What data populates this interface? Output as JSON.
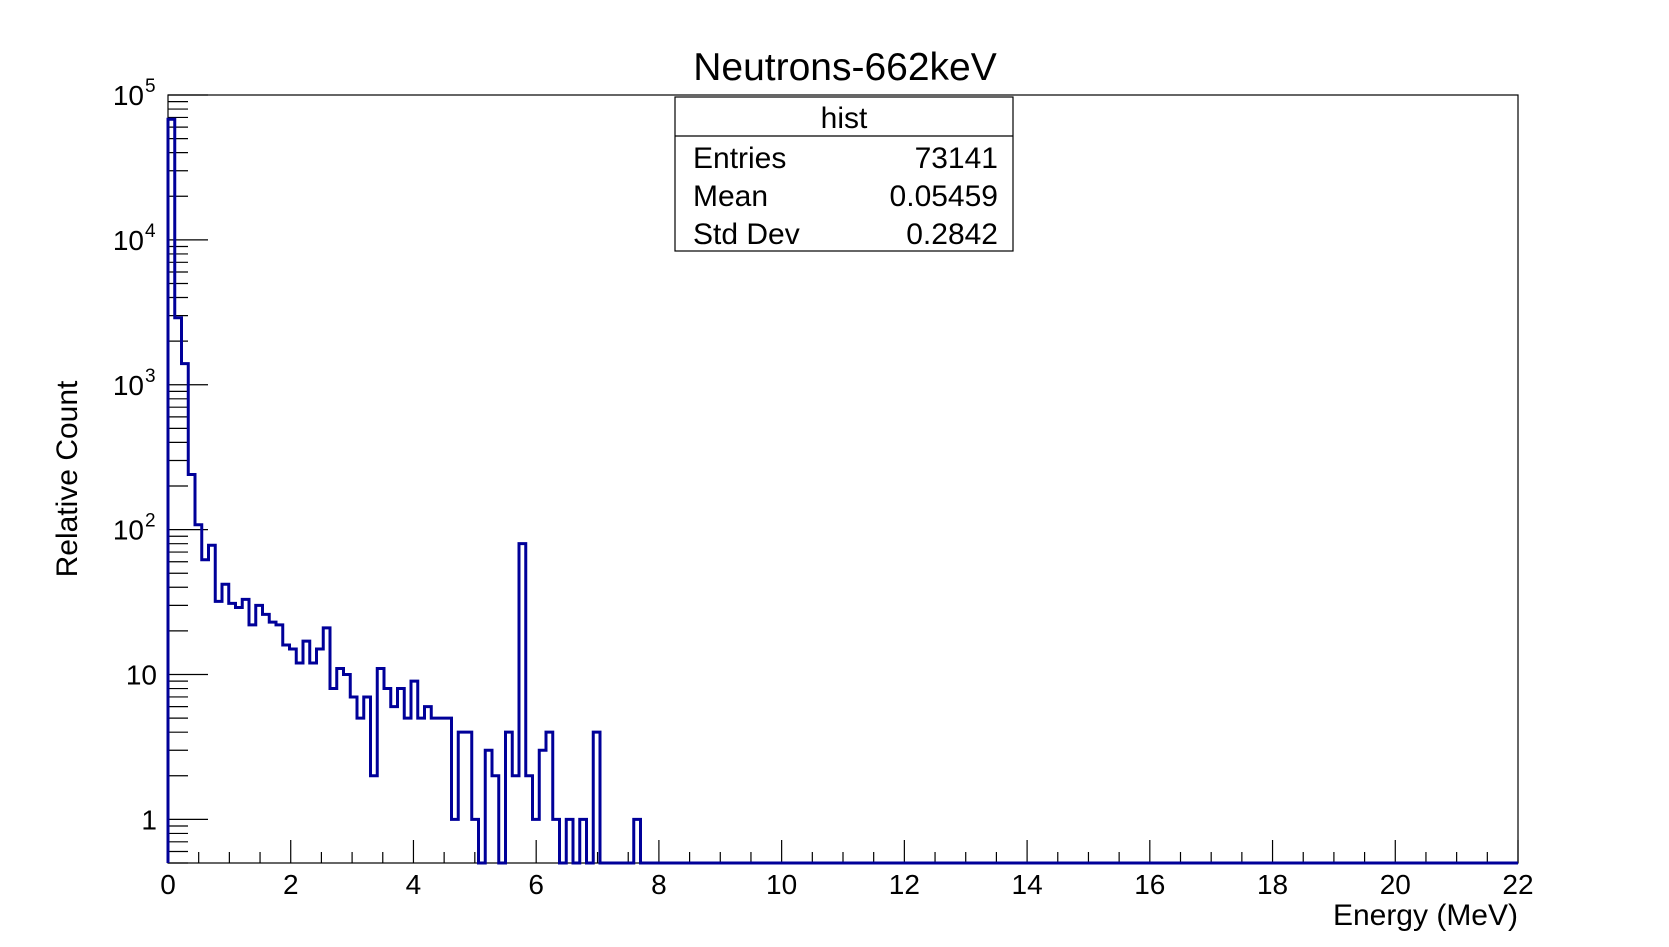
{
  "chart_data": {
    "type": "histogram",
    "title": "Neutrons-662keV",
    "xlabel": "Energy (MeV)",
    "ylabel": "Relative Count",
    "xlim": [
      0,
      22
    ],
    "ylim": [
      0.5,
      100000
    ],
    "y_scale": "log",
    "x_ticks": [
      0,
      2,
      4,
      6,
      8,
      10,
      12,
      14,
      16,
      18,
      20,
      22
    ],
    "y_ticks": [
      {
        "value": 1,
        "base": "1",
        "exp": ""
      },
      {
        "value": 10,
        "base": "10",
        "exp": ""
      },
      {
        "value": 100,
        "base": "10",
        "exp": "2"
      },
      {
        "value": 1000,
        "base": "10",
        "exp": "3"
      },
      {
        "value": 10000,
        "base": "10",
        "exp": "4"
      },
      {
        "value": 100000,
        "base": "10",
        "exp": "5"
      }
    ],
    "line_color": "#000099",
    "bin_width": 0.11,
    "bins": [
      [
        0.0,
        68000
      ],
      [
        0.11,
        2900
      ],
      [
        0.22,
        1400
      ],
      [
        0.33,
        240
      ],
      [
        0.44,
        108
      ],
      [
        0.55,
        62
      ],
      [
        0.66,
        78
      ],
      [
        0.77,
        32
      ],
      [
        0.88,
        42
      ],
      [
        0.99,
        31
      ],
      [
        1.1,
        29
      ],
      [
        1.21,
        33
      ],
      [
        1.32,
        22
      ],
      [
        1.43,
        30
      ],
      [
        1.54,
        26
      ],
      [
        1.65,
        23
      ],
      [
        1.76,
        22
      ],
      [
        1.87,
        16
      ],
      [
        1.98,
        15
      ],
      [
        2.09,
        12
      ],
      [
        2.2,
        17
      ],
      [
        2.31,
        12
      ],
      [
        2.42,
        15
      ],
      [
        2.53,
        21
      ],
      [
        2.64,
        8
      ],
      [
        2.75,
        11
      ],
      [
        2.86,
        10
      ],
      [
        2.97,
        7
      ],
      [
        3.08,
        5
      ],
      [
        3.19,
        7
      ],
      [
        3.3,
        2
      ],
      [
        3.41,
        11
      ],
      [
        3.52,
        8
      ],
      [
        3.63,
        6
      ],
      [
        3.74,
        8
      ],
      [
        3.85,
        5
      ],
      [
        3.96,
        9
      ],
      [
        4.07,
        5
      ],
      [
        4.18,
        6
      ],
      [
        4.29,
        5
      ],
      [
        4.4,
        5
      ],
      [
        4.51,
        5
      ],
      [
        4.62,
        1
      ],
      [
        4.73,
        4
      ],
      [
        4.84,
        4
      ],
      [
        4.95,
        1
      ],
      [
        5.06,
        0.5
      ],
      [
        5.17,
        3
      ],
      [
        5.28,
        2
      ],
      [
        5.39,
        0.5
      ],
      [
        5.5,
        4
      ],
      [
        5.61,
        2
      ],
      [
        5.72,
        80
      ],
      [
        5.83,
        2
      ],
      [
        5.94,
        1
      ],
      [
        6.05,
        3
      ],
      [
        6.16,
        4
      ],
      [
        6.27,
        1
      ],
      [
        6.38,
        0.5
      ],
      [
        6.49,
        1
      ],
      [
        6.6,
        0.5
      ],
      [
        6.71,
        1
      ],
      [
        6.82,
        0.5
      ],
      [
        6.93,
        4
      ],
      [
        7.04,
        0.5
      ],
      [
        7.15,
        0.5
      ],
      [
        7.26,
        0.5
      ],
      [
        7.37,
        0.5
      ],
      [
        7.48,
        0.5
      ],
      [
        7.59,
        1
      ],
      [
        7.7,
        0.5
      ]
    ]
  },
  "stats_box": {
    "title": "hist",
    "rows": [
      {
        "label": "Entries",
        "value": "73141"
      },
      {
        "label": "Mean",
        "value": "0.05459"
      },
      {
        "label": "Std Dev",
        "value": "0.2842"
      }
    ]
  }
}
